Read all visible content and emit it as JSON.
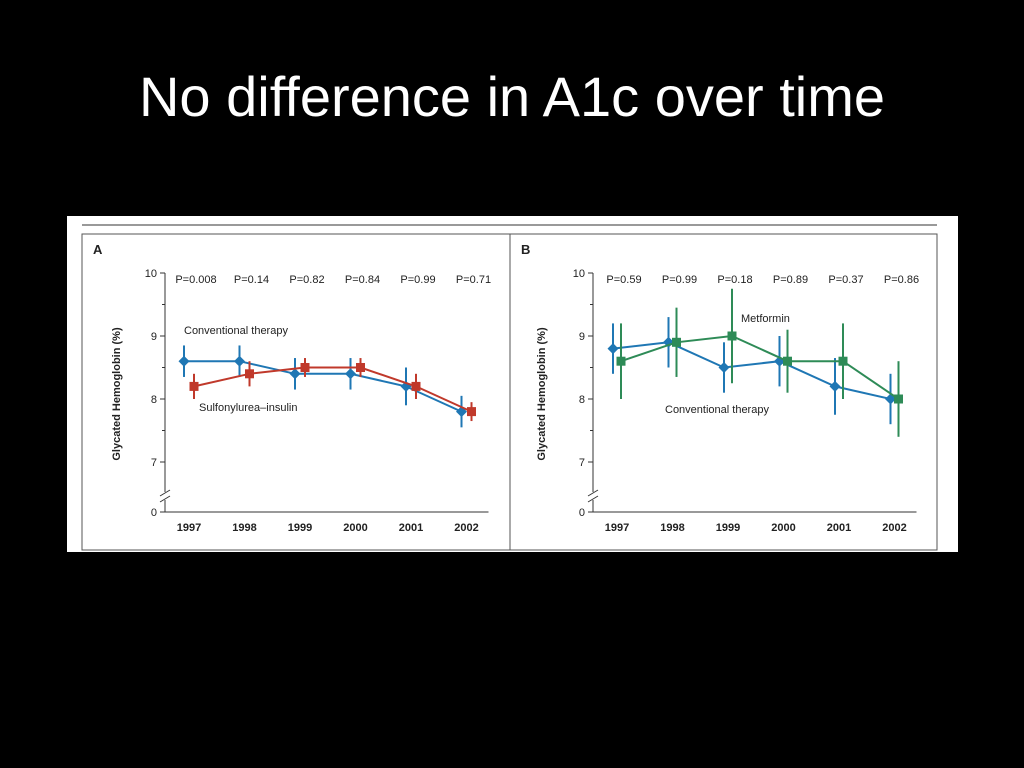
{
  "slide": {
    "title": "No difference in A1c over time"
  },
  "colors": {
    "background": "#000000",
    "conventional": "#1f77b4",
    "sulfonylurea": "#c0392b",
    "metformin": "#2e8b57"
  },
  "chart_data": [
    {
      "panel": "A",
      "type": "line",
      "ylabel": "Glycated Hemoglobin (%)",
      "ylim": [
        0,
        10
      ],
      "axis_break": true,
      "y_ticks": [
        "10",
        "9",
        "8",
        "7",
        "0"
      ],
      "x": [
        "1997",
        "1998",
        "1999",
        "2000",
        "2001",
        "2002"
      ],
      "p_values": [
        "P=0.008",
        "P=0.14",
        "P=0.82",
        "P=0.84",
        "P=0.99",
        "P=0.71"
      ],
      "series": [
        {
          "name": "Conventional therapy",
          "marker": "diamond",
          "color": "#1f77b4",
          "values": [
            8.6,
            8.6,
            8.4,
            8.4,
            8.2,
            7.8
          ],
          "error": [
            0.25,
            0.25,
            0.25,
            0.25,
            0.3,
            0.25
          ]
        },
        {
          "name": "Sulfonylurea–insulin",
          "marker": "square",
          "color": "#c0392b",
          "values": [
            8.2,
            8.4,
            8.5,
            8.5,
            8.2,
            7.8
          ],
          "error": [
            0.2,
            0.2,
            0.15,
            0.15,
            0.2,
            0.15
          ]
        }
      ]
    },
    {
      "panel": "B",
      "type": "line",
      "ylabel": "Glycated Hemoglobin (%)",
      "ylim": [
        0,
        10
      ],
      "axis_break": true,
      "y_ticks": [
        "10",
        "9",
        "8",
        "7",
        "0"
      ],
      "x": [
        "1997",
        "1998",
        "1999",
        "2000",
        "2001",
        "2002"
      ],
      "p_values": [
        "P=0.59",
        "P=0.99",
        "P=0.18",
        "P=0.89",
        "P=0.37",
        "P=0.86"
      ],
      "series": [
        {
          "name": "Conventional therapy",
          "marker": "diamond",
          "color": "#1f77b4",
          "values": [
            8.8,
            8.9,
            8.5,
            8.6,
            8.2,
            8.0
          ],
          "error": [
            0.4,
            0.4,
            0.4,
            0.4,
            0.45,
            0.4
          ]
        },
        {
          "name": "Metformin",
          "marker": "square",
          "color": "#2e8b57",
          "values": [
            8.6,
            8.9,
            9.0,
            8.6,
            8.6,
            8.0
          ],
          "error": [
            0.6,
            0.55,
            0.75,
            0.5,
            0.6,
            0.6
          ]
        }
      ]
    }
  ]
}
